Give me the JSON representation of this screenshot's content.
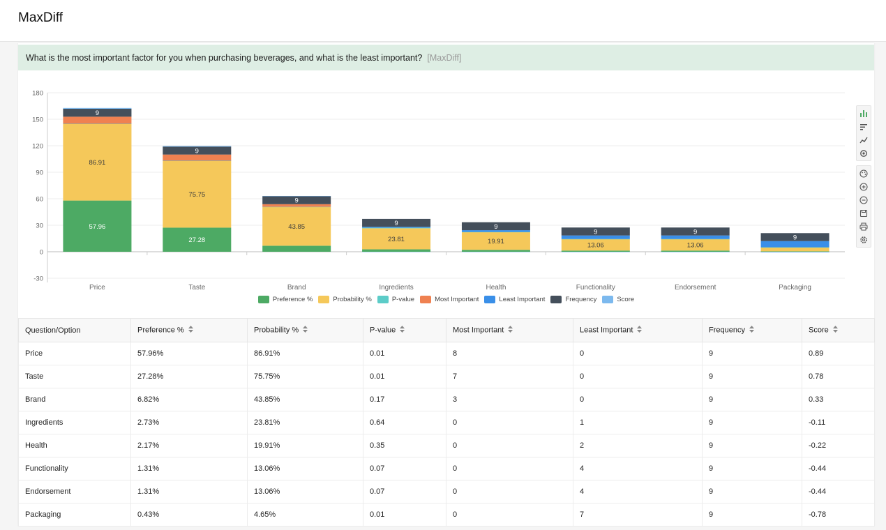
{
  "app": {
    "title": "MaxDiff"
  },
  "question": {
    "text": "What is the most important factor for you when purchasing beverages, and what is the least important?",
    "tag": "[MaxDiff]"
  },
  "colors": {
    "preference": "#4daa64",
    "probability": "#f5c85a",
    "pvalue": "#5cccc8",
    "most": "#ef8151",
    "least": "#3a8fe8",
    "frequency": "#444f5b",
    "score": "#7cb9ee"
  },
  "chart_data": {
    "type": "bar",
    "stacked": true,
    "categories": [
      "Price",
      "Taste",
      "Brand",
      "Ingredients",
      "Health",
      "Functionality",
      "Endorsement",
      "Packaging"
    ],
    "ylim": [
      -30,
      180
    ],
    "yticks": [
      -30,
      0,
      30,
      60,
      90,
      120,
      150,
      180
    ],
    "series": [
      {
        "key": "preference",
        "name": "Preference %",
        "values": [
          57.96,
          27.28,
          6.82,
          2.73,
          2.17,
          1.31,
          1.31,
          0.43
        ]
      },
      {
        "key": "probability",
        "name": "Probability %",
        "values": [
          86.91,
          75.75,
          43.85,
          23.81,
          19.91,
          13.06,
          13.06,
          4.65
        ]
      },
      {
        "key": "pvalue",
        "name": "P-value",
        "values": [
          0.01,
          0.01,
          0.17,
          0.64,
          0.35,
          0.07,
          0.07,
          0.01
        ]
      },
      {
        "key": "most",
        "name": "Most Important",
        "values": [
          8,
          7,
          3,
          0,
          0,
          0,
          0,
          0
        ]
      },
      {
        "key": "least",
        "name": "Least Important",
        "values": [
          0,
          0,
          0,
          1,
          2,
          4,
          4,
          7
        ]
      },
      {
        "key": "frequency",
        "name": "Frequency",
        "values": [
          9,
          9,
          9,
          9,
          9,
          9,
          9,
          9
        ]
      },
      {
        "key": "score",
        "name": "Score",
        "values": [
          0.89,
          0.78,
          0.33,
          -0.11,
          -0.22,
          -0.44,
          -0.44,
          -0.78
        ]
      }
    ],
    "labels": {
      "preference": [
        "57.96",
        "27.28",
        "",
        "",
        "",
        "",
        "",
        ""
      ],
      "probability": [
        "86.91",
        "75.75",
        "43.85",
        "23.81",
        "19.91",
        "13.06",
        "13.06",
        ""
      ],
      "frequency": [
        "9",
        "9",
        "9",
        "9",
        "9",
        "9",
        "9",
        "9"
      ]
    },
    "grid": true,
    "legend_position": "bottom-center"
  },
  "table": {
    "headers": [
      "Question/Option",
      "Preference %",
      "Probability %",
      "P-value",
      "Most Important",
      "Least Important",
      "Frequency",
      "Score"
    ],
    "rows": [
      [
        "Price",
        "57.96%",
        "86.91%",
        "0.01",
        "8",
        "0",
        "9",
        "0.89"
      ],
      [
        "Taste",
        "27.28%",
        "75.75%",
        "0.01",
        "7",
        "0",
        "9",
        "0.78"
      ],
      [
        "Brand",
        "6.82%",
        "43.85%",
        "0.17",
        "3",
        "0",
        "9",
        "0.33"
      ],
      [
        "Ingredients",
        "2.73%",
        "23.81%",
        "0.64",
        "0",
        "1",
        "9",
        "-0.11"
      ],
      [
        "Health",
        "2.17%",
        "19.91%",
        "0.35",
        "0",
        "2",
        "9",
        "-0.22"
      ],
      [
        "Functionality",
        "1.31%",
        "13.06%",
        "0.07",
        "0",
        "4",
        "9",
        "-0.44"
      ],
      [
        "Endorsement",
        "1.31%",
        "13.06%",
        "0.07",
        "0",
        "4",
        "9",
        "-0.44"
      ],
      [
        "Packaging",
        "0.43%",
        "4.65%",
        "0.01",
        "0",
        "7",
        "9",
        "-0.78"
      ]
    ]
  },
  "toolbar": {
    "group1": [
      "bar-chart-icon",
      "sort-icon",
      "line-chart-icon",
      "settings-icon"
    ],
    "group2": [
      "palette-icon",
      "zoom-in-icon",
      "zoom-out-icon",
      "save-icon",
      "print-icon",
      "gear-icon"
    ]
  }
}
